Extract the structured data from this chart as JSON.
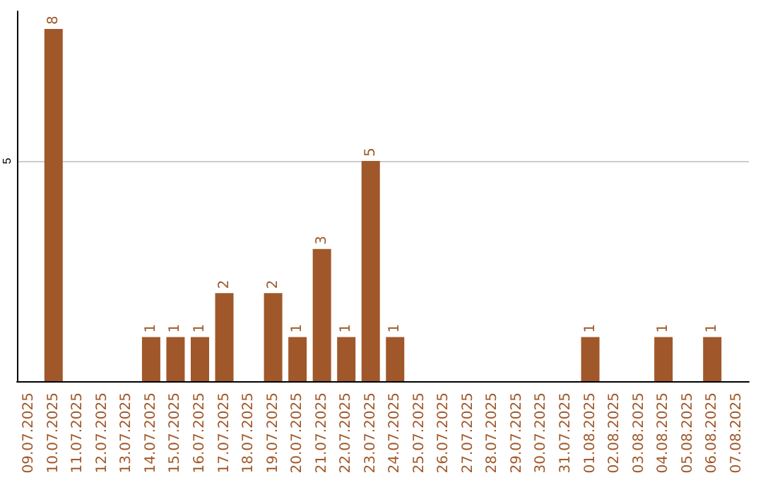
{
  "chart_data": {
    "type": "bar",
    "categories": [
      "09.07.2025",
      "10.07.2025",
      "11.07.2025",
      "12.07.2025",
      "13.07.2025",
      "14.07.2025",
      "15.07.2025",
      "16.07.2025",
      "17.07.2025",
      "18.07.2025",
      "19.07.2025",
      "20.07.2025",
      "21.07.2025",
      "22.07.2025",
      "23.07.2025",
      "24.07.2025",
      "25.07.2025",
      "26.07.2025",
      "27.07.2025",
      "28.07.2025",
      "29.07.2025",
      "30.07.2025",
      "31.07.2025",
      "01.08.2025",
      "02.08.2025",
      "03.08.2025",
      "04.08.2025",
      "05.08.2025",
      "06.08.2025",
      "07.08.2025"
    ],
    "values": [
      0,
      8,
      0,
      0,
      0,
      1,
      1,
      1,
      2,
      0,
      2,
      1,
      3,
      1,
      5,
      1,
      0,
      0,
      0,
      0,
      0,
      0,
      0,
      1,
      0,
      0,
      1,
      0,
      1,
      0
    ],
    "value_labels": [
      null,
      "8",
      null,
      null,
      null,
      "1",
      "1",
      "1",
      "2",
      null,
      "2",
      "1",
      "3",
      "1",
      "5",
      "1",
      null,
      null,
      null,
      null,
      null,
      null,
      null,
      "1",
      null,
      null,
      "1",
      null,
      "1",
      null
    ],
    "color": "#a0582a",
    "ylim": [
      0,
      8.4
    ],
    "yticks": [
      5
    ],
    "grid": "y"
  }
}
